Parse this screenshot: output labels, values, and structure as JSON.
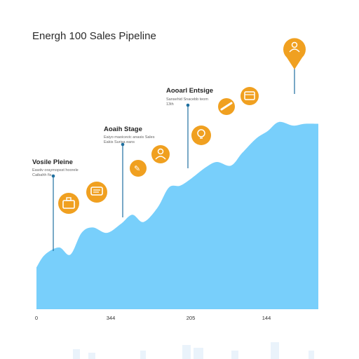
{
  "chart_data": {
    "type": "area",
    "title": "Energh 100 Sales Pipeline",
    "x_tick_labels": [
      "0",
      "344",
      "205",
      "144"
    ],
    "x": [
      0,
      3,
      8,
      12,
      16,
      20,
      25,
      30,
      34,
      38,
      43,
      47,
      51,
      55,
      60,
      64,
      69,
      73,
      78,
      82,
      86,
      91,
      95,
      100
    ],
    "y": [
      23,
      30,
      34,
      30,
      42,
      45,
      42,
      47,
      52,
      48,
      56,
      67,
      68,
      72,
      78,
      81,
      79,
      86,
      94,
      98,
      103,
      101,
      102,
      102
    ],
    "ylim": [
      0,
      130
    ],
    "stages": [
      {
        "title": "Vosile Pleine",
        "subtitle_1": "Eawiiv oraymopsst hoorele",
        "subtitle_2": "Caibahh fis"
      },
      {
        "title": "Aoaih Stage",
        "subtitle_1": "Eaiyo maoicevic anasis Sales",
        "subtitle_2": "Eakis Surisa eans"
      },
      {
        "title": "Aooarl Entsige",
        "subtitle_1": "Sansehid Snacebb teom",
        "subtitle_2": "13th"
      }
    ],
    "icons": [
      "briefcase-icon",
      "chat-icon",
      "document-icon",
      "user-icon",
      "lightbulb-icon",
      "handshake-icon",
      "coin-icon",
      "wallet-icon",
      "user-pin-icon"
    ],
    "colors": {
      "area": "#78cffb",
      "icon": "#f0a020",
      "stem": "#1e6f9f",
      "axis": "#2b3b4b"
    },
    "grid": false
  }
}
